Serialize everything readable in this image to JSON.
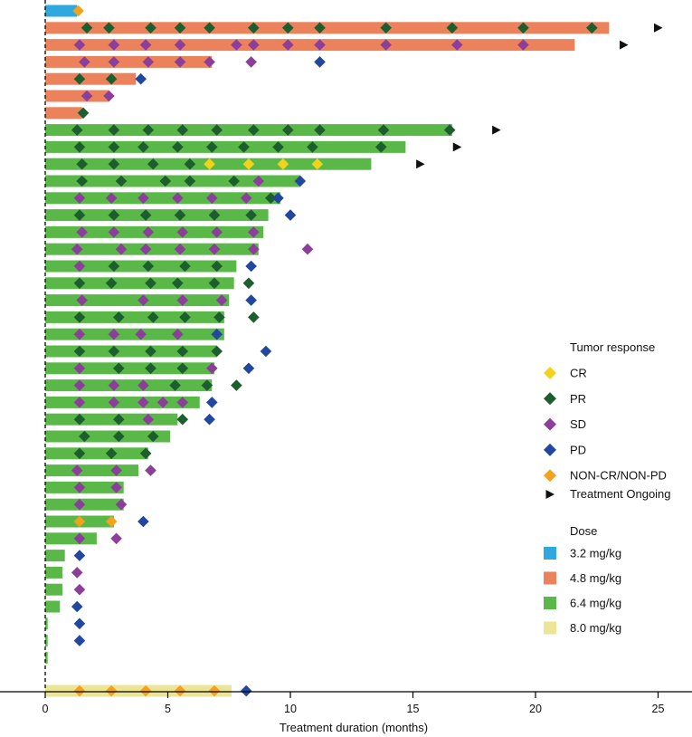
{
  "colors": {
    "dose": {
      "3.2 mg/kg": "#2fa8e0",
      "4.8 mg/kg": "#ec825c",
      "6.4 mg/kg": "#5ab849",
      "8.0 mg/kg": "#ede596"
    },
    "response": {
      "CR": "#f2d21b",
      "PR": "#1d5e2e",
      "SD": "#8c3f9a",
      "PD": "#21479e",
      "NON-CR/NON-PD": "#f2a21b"
    },
    "ongoing": "#111111",
    "axis": "#000000"
  },
  "chart_data": {
    "type": "swimmer",
    "title": "",
    "xlabel": "Treatment duration (months)",
    "ylabel": "",
    "xlim": [
      0,
      26
    ],
    "x_ticks": [
      0,
      5,
      10,
      15,
      20,
      25
    ],
    "x_tick_labels": [
      "0",
      "5",
      "10",
      "15",
      "20",
      "25"
    ],
    "legend_response_title": "Tumor response",
    "legend_response": [
      {
        "label": "CR",
        "symbol": "diamond",
        "key": "CR"
      },
      {
        "label": "PR",
        "symbol": "diamond",
        "key": "PR"
      },
      {
        "label": "SD",
        "symbol": "diamond",
        "key": "SD"
      },
      {
        "label": "PD",
        "symbol": "diamond",
        "key": "PD"
      },
      {
        "label": "NON-CR/NON-PD",
        "symbol": "diamond",
        "key": "NON-CR/NON-PD"
      },
      {
        "label": "Treatment Ongoing",
        "symbol": "triangle",
        "key": "ongoing"
      }
    ],
    "legend_dose_title": "Dose",
    "legend_dose": [
      "3.2 mg/kg",
      "4.8 mg/kg",
      "6.4 mg/kg",
      "8.0 mg/kg"
    ],
    "patients": [
      {
        "dose": "3.2 mg/kg",
        "duration": 1.3,
        "ongoing": null,
        "responses": [
          [
            1.35,
            "NON-CR/NON-PD"
          ]
        ]
      },
      {
        "dose": "4.8 mg/kg",
        "duration": 23.0,
        "ongoing": 25.0,
        "responses": [
          [
            1.7,
            "PR"
          ],
          [
            2.6,
            "PR"
          ],
          [
            4.3,
            "PR"
          ],
          [
            5.5,
            "PR"
          ],
          [
            6.7,
            "PR"
          ],
          [
            8.5,
            "PR"
          ],
          [
            9.9,
            "PR"
          ],
          [
            11.2,
            "PR"
          ],
          [
            13.9,
            "PR"
          ],
          [
            16.6,
            "PR"
          ],
          [
            19.5,
            "PR"
          ],
          [
            22.3,
            "PR"
          ]
        ]
      },
      {
        "dose": "4.8 mg/kg",
        "duration": 21.6,
        "ongoing": 23.6,
        "responses": [
          [
            1.4,
            "SD"
          ],
          [
            2.8,
            "SD"
          ],
          [
            4.1,
            "SD"
          ],
          [
            5.5,
            "SD"
          ],
          [
            7.8,
            "SD"
          ],
          [
            8.5,
            "SD"
          ],
          [
            9.9,
            "SD"
          ],
          [
            11.2,
            "SD"
          ],
          [
            13.9,
            "SD"
          ],
          [
            16.8,
            "SD"
          ],
          [
            19.5,
            "SD"
          ]
        ]
      },
      {
        "dose": "4.8 mg/kg",
        "duration": 6.8,
        "ongoing": null,
        "responses": [
          [
            1.6,
            "SD"
          ],
          [
            2.8,
            "SD"
          ],
          [
            4.2,
            "SD"
          ],
          [
            5.5,
            "SD"
          ],
          [
            6.7,
            "SD"
          ],
          [
            8.4,
            "SD"
          ],
          [
            11.2,
            "PD"
          ]
        ]
      },
      {
        "dose": "4.8 mg/kg",
        "duration": 3.7,
        "ongoing": null,
        "responses": [
          [
            1.4,
            "PR"
          ],
          [
            2.7,
            "PR"
          ],
          [
            3.9,
            "PD"
          ]
        ]
      },
      {
        "dose": "4.8 mg/kg",
        "duration": 2.6,
        "ongoing": null,
        "responses": [
          [
            1.7,
            "SD"
          ],
          [
            2.6,
            "SD"
          ]
        ]
      },
      {
        "dose": "4.8 mg/kg",
        "duration": 1.5,
        "ongoing": null,
        "responses": [
          [
            1.55,
            "PR"
          ]
        ]
      },
      {
        "dose": "6.4 mg/kg",
        "duration": 16.6,
        "ongoing": 18.4,
        "responses": [
          [
            1.3,
            "PR"
          ],
          [
            2.8,
            "PR"
          ],
          [
            4.2,
            "PR"
          ],
          [
            5.6,
            "PR"
          ],
          [
            7.0,
            "PR"
          ],
          [
            8.5,
            "PR"
          ],
          [
            9.9,
            "PR"
          ],
          [
            11.2,
            "PR"
          ],
          [
            13.8,
            "PR"
          ],
          [
            16.5,
            "PR"
          ]
        ]
      },
      {
        "dose": "6.4 mg/kg",
        "duration": 14.7,
        "ongoing": 16.8,
        "responses": [
          [
            1.4,
            "PR"
          ],
          [
            2.8,
            "PR"
          ],
          [
            4.0,
            "PR"
          ],
          [
            5.4,
            "PR"
          ],
          [
            6.8,
            "PR"
          ],
          [
            8.1,
            "PR"
          ],
          [
            9.5,
            "PR"
          ],
          [
            10.9,
            "PR"
          ],
          [
            13.7,
            "PR"
          ]
        ]
      },
      {
        "dose": "6.4 mg/kg",
        "duration": 13.3,
        "ongoing": 15.3,
        "responses": [
          [
            1.5,
            "PR"
          ],
          [
            2.8,
            "PR"
          ],
          [
            4.4,
            "PR"
          ],
          [
            5.9,
            "PR"
          ],
          [
            6.7,
            "CR"
          ],
          [
            8.3,
            "CR"
          ],
          [
            9.7,
            "CR"
          ],
          [
            11.1,
            "CR"
          ]
        ]
      },
      {
        "dose": "6.4 mg/kg",
        "duration": 10.4,
        "ongoing": null,
        "responses": [
          [
            1.5,
            "PR"
          ],
          [
            3.1,
            "PR"
          ],
          [
            4.9,
            "PR"
          ],
          [
            5.9,
            "PR"
          ],
          [
            7.7,
            "PR"
          ],
          [
            8.7,
            "SD"
          ],
          [
            10.4,
            "PD"
          ]
        ]
      },
      {
        "dose": "6.4 mg/kg",
        "duration": 9.6,
        "ongoing": null,
        "responses": [
          [
            1.4,
            "SD"
          ],
          [
            2.7,
            "SD"
          ],
          [
            4.0,
            "SD"
          ],
          [
            5.4,
            "SD"
          ],
          [
            6.8,
            "SD"
          ],
          [
            8.2,
            "SD"
          ],
          [
            9.2,
            "PR"
          ],
          [
            9.5,
            "PD"
          ]
        ]
      },
      {
        "dose": "6.4 mg/kg",
        "duration": 9.1,
        "ongoing": null,
        "responses": [
          [
            1.4,
            "PR"
          ],
          [
            2.8,
            "PR"
          ],
          [
            4.1,
            "PR"
          ],
          [
            5.5,
            "PR"
          ],
          [
            6.9,
            "PR"
          ],
          [
            8.4,
            "PR"
          ],
          [
            10.0,
            "PD"
          ]
        ]
      },
      {
        "dose": "6.4 mg/kg",
        "duration": 8.9,
        "ongoing": null,
        "responses": [
          [
            1.5,
            "SD"
          ],
          [
            2.8,
            "SD"
          ],
          [
            4.2,
            "SD"
          ],
          [
            5.6,
            "SD"
          ],
          [
            7.0,
            "SD"
          ],
          [
            8.5,
            "SD"
          ]
        ]
      },
      {
        "dose": "6.4 mg/kg",
        "duration": 8.7,
        "ongoing": null,
        "responses": [
          [
            1.3,
            "SD"
          ],
          [
            3.1,
            "SD"
          ],
          [
            4.1,
            "SD"
          ],
          [
            5.5,
            "SD"
          ],
          [
            6.9,
            "SD"
          ],
          [
            8.5,
            "SD"
          ],
          [
            10.7,
            "SD"
          ]
        ]
      },
      {
        "dose": "6.4 mg/kg",
        "duration": 7.8,
        "ongoing": null,
        "responses": [
          [
            1.4,
            "SD"
          ],
          [
            2.8,
            "PR"
          ],
          [
            4.2,
            "PR"
          ],
          [
            5.7,
            "PR"
          ],
          [
            7.0,
            "PR"
          ],
          [
            8.4,
            "PD"
          ]
        ]
      },
      {
        "dose": "6.4 mg/kg",
        "duration": 7.7,
        "ongoing": null,
        "responses": [
          [
            1.4,
            "PR"
          ],
          [
            2.7,
            "PR"
          ],
          [
            4.3,
            "PR"
          ],
          [
            5.4,
            "PR"
          ],
          [
            6.9,
            "PR"
          ],
          [
            8.3,
            "PR"
          ]
        ]
      },
      {
        "dose": "6.4 mg/kg",
        "duration": 7.5,
        "ongoing": null,
        "responses": [
          [
            1.5,
            "SD"
          ],
          [
            4.0,
            "SD"
          ],
          [
            5.6,
            "SD"
          ],
          [
            7.2,
            "SD"
          ],
          [
            8.4,
            "PD"
          ]
        ]
      },
      {
        "dose": "6.4 mg/kg",
        "duration": 7.3,
        "ongoing": null,
        "responses": [
          [
            1.4,
            "PR"
          ],
          [
            3.0,
            "PR"
          ],
          [
            4.4,
            "PR"
          ],
          [
            5.7,
            "PR"
          ],
          [
            7.1,
            "PR"
          ],
          [
            8.5,
            "PR"
          ]
        ]
      },
      {
        "dose": "6.4 mg/kg",
        "duration": 7.3,
        "ongoing": null,
        "responses": [
          [
            1.4,
            "SD"
          ],
          [
            2.8,
            "SD"
          ],
          [
            3.9,
            "SD"
          ],
          [
            5.4,
            "SD"
          ],
          [
            7.0,
            "PD"
          ]
        ]
      },
      {
        "dose": "6.4 mg/kg",
        "duration": 7.0,
        "ongoing": null,
        "responses": [
          [
            1.4,
            "PR"
          ],
          [
            2.8,
            "PR"
          ],
          [
            4.3,
            "PR"
          ],
          [
            5.6,
            "PR"
          ],
          [
            7.0,
            "PR"
          ],
          [
            9.0,
            "PD"
          ]
        ]
      },
      {
        "dose": "6.4 mg/kg",
        "duration": 6.9,
        "ongoing": null,
        "responses": [
          [
            1.4,
            "SD"
          ],
          [
            3.0,
            "PR"
          ],
          [
            4.3,
            "PR"
          ],
          [
            5.6,
            "PR"
          ],
          [
            6.8,
            "SD"
          ],
          [
            8.3,
            "PD"
          ]
        ]
      },
      {
        "dose": "6.4 mg/kg",
        "duration": 6.8,
        "ongoing": null,
        "responses": [
          [
            1.4,
            "SD"
          ],
          [
            2.8,
            "SD"
          ],
          [
            4.0,
            "SD"
          ],
          [
            5.3,
            "PR"
          ],
          [
            6.6,
            "PR"
          ],
          [
            7.8,
            "PR"
          ]
        ]
      },
      {
        "dose": "6.4 mg/kg",
        "duration": 6.3,
        "ongoing": null,
        "responses": [
          [
            1.4,
            "SD"
          ],
          [
            2.8,
            "SD"
          ],
          [
            4.0,
            "SD"
          ],
          [
            4.8,
            "SD"
          ],
          [
            5.6,
            "SD"
          ],
          [
            6.8,
            "PD"
          ]
        ]
      },
      {
        "dose": "6.4 mg/kg",
        "duration": 5.4,
        "ongoing": null,
        "responses": [
          [
            1.4,
            "PR"
          ],
          [
            3.0,
            "PR"
          ],
          [
            4.2,
            "SD"
          ],
          [
            5.6,
            "PR"
          ],
          [
            6.7,
            "PD"
          ]
        ]
      },
      {
        "dose": "6.4 mg/kg",
        "duration": 5.1,
        "ongoing": null,
        "responses": [
          [
            1.6,
            "PR"
          ],
          [
            3.0,
            "PR"
          ],
          [
            4.4,
            "PR"
          ]
        ]
      },
      {
        "dose": "6.4 mg/kg",
        "duration": 4.2,
        "ongoing": null,
        "responses": [
          [
            1.4,
            "PR"
          ],
          [
            2.7,
            "PR"
          ],
          [
            4.1,
            "PR"
          ]
        ]
      },
      {
        "dose": "6.4 mg/kg",
        "duration": 3.8,
        "ongoing": null,
        "responses": [
          [
            1.3,
            "SD"
          ],
          [
            2.9,
            "SD"
          ],
          [
            4.3,
            "SD"
          ]
        ]
      },
      {
        "dose": "6.4 mg/kg",
        "duration": 3.2,
        "ongoing": null,
        "responses": [
          [
            1.4,
            "SD"
          ],
          [
            2.9,
            "SD"
          ]
        ]
      },
      {
        "dose": "6.4 mg/kg",
        "duration": 3.2,
        "ongoing": null,
        "responses": [
          [
            1.4,
            "SD"
          ],
          [
            3.1,
            "SD"
          ]
        ]
      },
      {
        "dose": "6.4 mg/kg",
        "duration": 2.8,
        "ongoing": null,
        "responses": [
          [
            1.4,
            "NON-CR/NON-PD"
          ],
          [
            2.7,
            "NON-CR/NON-PD"
          ],
          [
            4.0,
            "PD"
          ]
        ]
      },
      {
        "dose": "6.4 mg/kg",
        "duration": 2.1,
        "ongoing": null,
        "responses": [
          [
            1.4,
            "SD"
          ],
          [
            2.9,
            "SD"
          ]
        ]
      },
      {
        "dose": "6.4 mg/kg",
        "duration": 0.8,
        "ongoing": null,
        "responses": [
          [
            1.4,
            "PD"
          ]
        ]
      },
      {
        "dose": "6.4 mg/kg",
        "duration": 0.7,
        "ongoing": null,
        "responses": [
          [
            1.3,
            "SD"
          ]
        ]
      },
      {
        "dose": "6.4 mg/kg",
        "duration": 0.7,
        "ongoing": null,
        "responses": [
          [
            1.4,
            "SD"
          ]
        ]
      },
      {
        "dose": "6.4 mg/kg",
        "duration": 0.6,
        "ongoing": null,
        "responses": [
          [
            1.3,
            "PD"
          ]
        ]
      },
      {
        "dose": "6.4 mg/kg",
        "duration": 0.1,
        "ongoing": null,
        "responses": [
          [
            1.4,
            "PD"
          ]
        ]
      },
      {
        "dose": "6.4 mg/kg",
        "duration": 0.1,
        "ongoing": null,
        "responses": [
          [
            1.4,
            "PD"
          ]
        ]
      },
      {
        "dose": "6.4 mg/kg",
        "duration": 0.1,
        "ongoing": null,
        "responses": []
      },
      {
        "dose": "8.0 mg/kg",
        "duration": 7.6,
        "ongoing": null,
        "responses": [
          [
            1.4,
            "NON-CR/NON-PD"
          ],
          [
            2.7,
            "NON-CR/NON-PD"
          ],
          [
            4.1,
            "NON-CR/NON-PD"
          ],
          [
            5.5,
            "NON-CR/NON-PD"
          ],
          [
            6.9,
            "NON-CR/NON-PD"
          ],
          [
            8.2,
            "PD"
          ]
        ]
      }
    ]
  }
}
